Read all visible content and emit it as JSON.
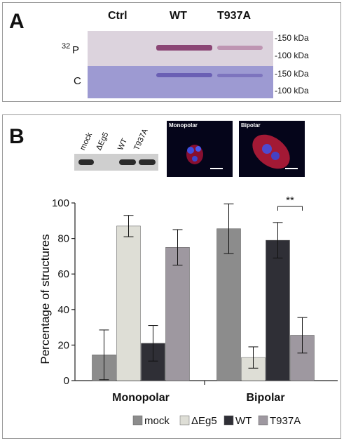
{
  "panel_a": {
    "letter": "A",
    "lanes": [
      "Ctrl",
      "WT",
      "T937A"
    ],
    "row_labels": {
      "p32_sup": "32",
      "p32": "P",
      "c": "C"
    },
    "markers": [
      "-150 kDa",
      "-100 kDa",
      "-150 kDa",
      "-100 kDa"
    ]
  },
  "panel_b": {
    "letter": "B",
    "western_lanes": [
      "mock",
      "ΔEg5",
      "WT",
      "T937A"
    ],
    "micrographs": [
      "Monopolar",
      "Bipolar"
    ]
  },
  "colors": {
    "mock": "#8c8c8c",
    "dEg5": "#deded6",
    "WT": "#2f2f36",
    "T937A": "#9e98a0",
    "gel_top": "#d9d1dc",
    "gel_bottom": "#9797d0"
  },
  "chart_data": {
    "type": "bar",
    "ylabel": "Percentage of structures",
    "xlabel": "",
    "ylim": [
      0,
      100
    ],
    "yticks": [
      0,
      20,
      40,
      60,
      80,
      100
    ],
    "categories": [
      "Monopolar",
      "Bipolar"
    ],
    "series": [
      {
        "name": "mock",
        "values": [
          14.5,
          85.5
        ],
        "errors": [
          14,
          14
        ]
      },
      {
        "name": "ΔEg5",
        "values": [
          87,
          13
        ],
        "errors": [
          6,
          6
        ]
      },
      {
        "name": "WT",
        "values": [
          21,
          79
        ],
        "errors": [
          10,
          10
        ]
      },
      {
        "name": "T937A",
        "values": [
          75,
          25.5
        ],
        "errors": [
          10,
          10
        ]
      }
    ],
    "annotation": "**",
    "legend_position": "bottom"
  }
}
